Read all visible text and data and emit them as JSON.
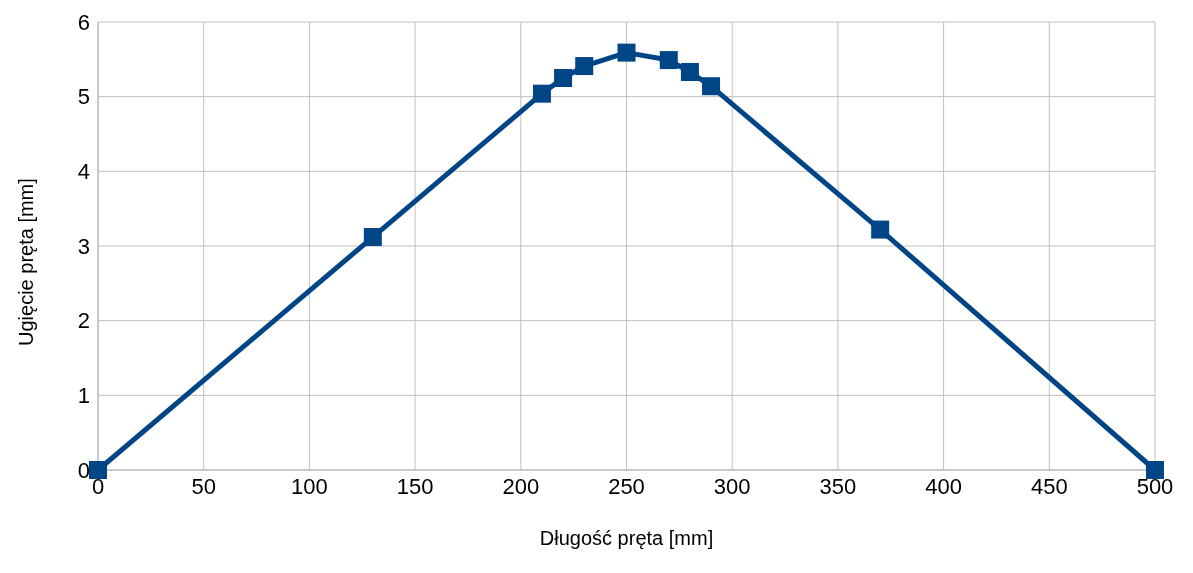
{
  "chart_data": {
    "type": "line",
    "xlabel": "Długość pręta [mm]",
    "ylabel": "Ugięcie pręta [mm]",
    "x": [
      0,
      130,
      210,
      220,
      230,
      250,
      270,
      280,
      290,
      370,
      500
    ],
    "series": [
      {
        "color": "#004586",
        "values": [
          0,
          3.12,
          5.04,
          5.25,
          5.41,
          5.59,
          5.49,
          5.33,
          5.14,
          3.22,
          0
        ]
      }
    ],
    "xlim": [
      0,
      500
    ],
    "xticks": [
      0,
      50,
      100,
      150,
      200,
      250,
      300,
      350,
      400,
      450,
      500
    ],
    "ylim": [
      0,
      6
    ],
    "yticks": [
      0,
      1,
      2,
      3,
      4,
      5,
      6
    ],
    "grid": true,
    "marker": "square",
    "line_style": "solid",
    "legend": false
  }
}
